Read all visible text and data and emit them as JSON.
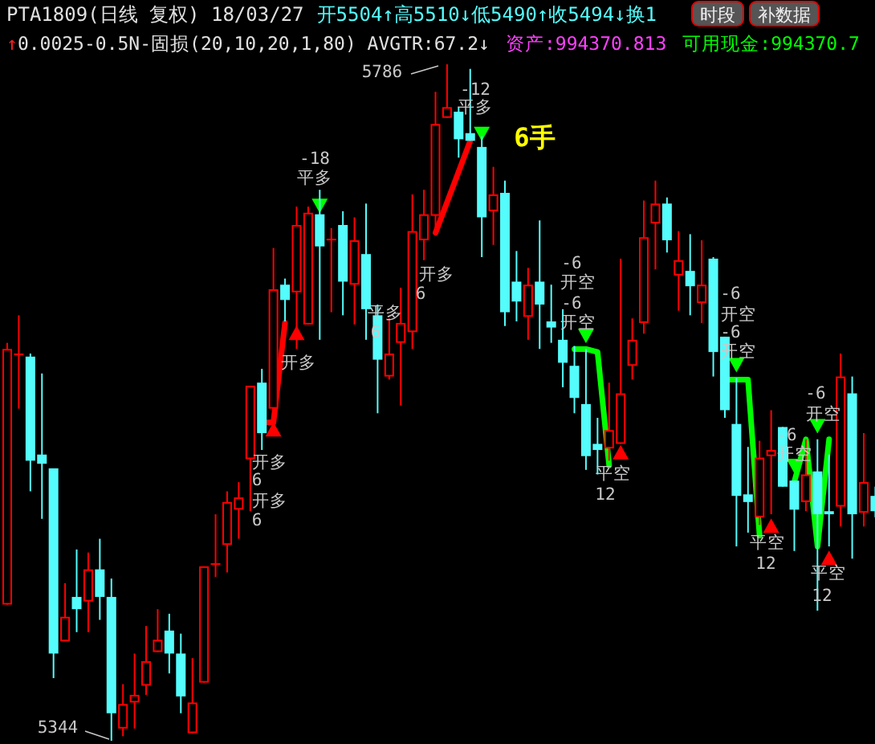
{
  "chart_data": {
    "type": "candlestick",
    "title": "PTA1809(日线 复权) 18/03/27",
    "subtitle": "开5504↑高5510↓低5490↑收5494↓换1",
    "categories": [
      null,
      null,
      null,
      null,
      null,
      null,
      null,
      null,
      null,
      null,
      null,
      null,
      null,
      null,
      null,
      null,
      null,
      null,
      null,
      null,
      null,
      null,
      null,
      null,
      null,
      null,
      null,
      null,
      null,
      null,
      null,
      null,
      null,
      null,
      null,
      null,
      null,
      null,
      null,
      null,
      null,
      null,
      null,
      null,
      null,
      null,
      null,
      null,
      null,
      null,
      null,
      null,
      null,
      null,
      null,
      null,
      null,
      null,
      null,
      null,
      null,
      null,
      null,
      null,
      null,
      null,
      null,
      null,
      null,
      null,
      null,
      null,
      null,
      null,
      null,
      null
    ],
    "ohlc": [
      [
        5433,
        5604,
        5433,
        5600
      ],
      [
        5596,
        5622,
        5561,
        5597
      ],
      [
        5595,
        5597,
        5507,
        5527
      ],
      [
        5531,
        5584,
        5489,
        5525
      ],
      [
        5522,
        5522,
        5385,
        5401
      ],
      [
        5409,
        5447,
        5409,
        5425
      ],
      [
        5438,
        5469,
        5415,
        5430
      ],
      [
        5435,
        5467,
        5415,
        5456
      ],
      [
        5456,
        5476,
        5423,
        5438
      ],
      [
        5438,
        5450,
        5344,
        5362
      ],
      [
        5352,
        5381,
        5347,
        5368
      ],
      [
        5369,
        5401,
        5352,
        5374
      ],
      [
        5380,
        5419,
        5374,
        5396
      ],
      [
        5402,
        5430,
        5402,
        5410
      ],
      [
        5416,
        5427,
        5388,
        5401
      ],
      [
        5401,
        5414,
        5362,
        5373
      ],
      [
        5349,
        5398,
        5349,
        5369
      ],
      [
        5382,
        5458,
        5382,
        5458
      ],
      [
        5459,
        5492,
        5451,
        5460
      ],
      [
        5472,
        5507,
        5454,
        5500
      ],
      [
        5495,
        5513,
        5476,
        5503
      ],
      [
        5528,
        5576,
        5494,
        5576
      ],
      [
        5578,
        5587,
        5534,
        5545
      ],
      [
        5561,
        5666,
        5561,
        5639
      ],
      [
        5642,
        5646,
        5618,
        5632
      ],
      [
        5637,
        5693,
        5600,
        5681
      ],
      [
        5616,
        5693,
        5616,
        5689
      ],
      [
        5688,
        5704,
        5606,
        5667
      ],
      [
        5671,
        5679,
        5624,
        5672
      ],
      [
        5681,
        5690,
        5622,
        5644
      ],
      [
        5642,
        5686,
        5616,
        5671
      ],
      [
        5662,
        5695,
        5606,
        5626
      ],
      [
        5622,
        5629,
        5558,
        5593
      ],
      [
        5582,
        5620,
        5580,
        5597
      ],
      [
        5604,
        5640,
        5563,
        5617
      ],
      [
        5611,
        5701,
        5600,
        5677
      ],
      [
        5671,
        5704,
        5658,
        5688
      ],
      [
        5687,
        5768,
        5676,
        5747
      ],
      [
        5751,
        5786,
        5751,
        5758
      ],
      [
        5755,
        5758,
        5725,
        5737
      ],
      [
        5741,
        5783,
        5736,
        5736
      ],
      [
        5732,
        5739,
        5660,
        5686
      ],
      [
        5690,
        5719,
        5668,
        5701
      ],
      [
        5702,
        5710,
        5615,
        5624
      ],
      [
        5644,
        5664,
        5618,
        5631
      ],
      [
        5621,
        5653,
        5606,
        5642
      ],
      [
        5644,
        5684,
        5600,
        5629
      ],
      [
        5618,
        5642,
        5604,
        5614
      ],
      [
        5606,
        5626,
        5575,
        5591
      ],
      [
        5589,
        5602,
        5558,
        5568
      ],
      [
        5564,
        5600,
        5521,
        5530
      ],
      [
        5538,
        5555,
        5518,
        5534
      ],
      [
        5535,
        5578,
        5527,
        5547
      ],
      [
        5538,
        5659,
        5538,
        5571
      ],
      [
        5589,
        5620,
        5580,
        5606
      ],
      [
        5617,
        5697,
        5610,
        5673
      ],
      [
        5682,
        5710,
        5652,
        5695
      ],
      [
        5695,
        5699,
        5663,
        5671
      ],
      [
        5648,
        5677,
        5625,
        5658
      ],
      [
        5651,
        5675,
        5622,
        5641
      ],
      [
        5630,
        5671,
        5617,
        5642
      ],
      [
        5659,
        5660,
        5582,
        5598
      ],
      [
        5608,
        5608,
        5555,
        5560
      ],
      [
        5551,
        5581,
        5471,
        5504
      ],
      [
        5505,
        5536,
        5480,
        5500
      ],
      [
        5490,
        5540,
        5485,
        5529
      ],
      [
        5530,
        5560,
        5492,
        5534
      ],
      [
        5549,
        5549,
        5510,
        5510
      ],
      [
        5514,
        5514,
        5468,
        5495
      ],
      [
        5500,
        5541,
        5494,
        5518
      ],
      [
        5520,
        5541,
        5429,
        5492
      ],
      [
        5494,
        5531,
        5471,
        5492
      ],
      [
        5497,
        5597,
        5484,
        5582
      ],
      [
        5571,
        5582,
        5463,
        5492
      ],
      [
        5493,
        5545,
        5484,
        5513
      ],
      [
        5504,
        5510,
        5490,
        5494
      ]
    ],
    "colors": [
      "#ff0000",
      "#ff0000",
      "#54fcfc",
      "#54fcfc",
      "#54fcfc",
      "#ff0000",
      "#54fcfc",
      "#ff0000",
      "#54fcfc",
      "#54fcfc",
      "#ff0000",
      "#ff0000",
      "#ff0000",
      "#ff0000",
      "#54fcfc",
      "#54fcfc",
      "#ff0000",
      "#ff0000",
      "#ff0000",
      "#ff0000",
      "#ff0000",
      "#ff0000",
      "#54fcfc",
      "#ff0000",
      "#54fcfc",
      "#ff0000",
      "#ff0000",
      "#54fcfc",
      "#ff0000",
      "#54fcfc",
      "#ff0000",
      "#54fcfc",
      "#54fcfc",
      "#ff0000",
      "#ff0000",
      "#ff0000",
      "#ff0000",
      "#ff0000",
      "#ff0000",
      "#54fcfc",
      "#54fcfc",
      "#54fcfc",
      "#ff0000",
      "#54fcfc",
      "#54fcfc",
      "#ff0000",
      "#54fcfc",
      "#54fcfc",
      "#54fcfc",
      "#54fcfc",
      "#54fcfc",
      "#54fcfc",
      "#ff0000",
      "#ff0000",
      "#ff0000",
      "#ff0000",
      "#ff0000",
      "#54fcfc",
      "#ff0000",
      "#54fcfc",
      "#ff0000",
      "#54fcfc",
      "#54fcfc",
      "#54fcfc",
      "#54fcfc",
      "#ff0000",
      "#ff0000",
      "#54fcfc",
      "#54fcfc",
      "#ff0000",
      "#54fcfc",
      "#54fcfc",
      "#ff0000",
      "#54fcfc",
      "#ff0000",
      "#54fcfc"
    ],
    "series": [
      {
        "type": "line",
        "color": "#ff0000",
        "values": [
          null,
          null,
          null,
          null,
          null,
          null,
          null,
          null,
          null,
          null,
          null,
          null,
          null,
          null,
          null,
          null,
          null,
          null,
          null,
          null,
          null,
          null,
          5552,
          5552,
          5617,
          null,
          null,
          null,
          null,
          null,
          null,
          null,
          null,
          null,
          null,
          null,
          null,
          5676,
          5696,
          5716,
          5736,
          null,
          null,
          null,
          null,
          null,
          null,
          null,
          null,
          null,
          null,
          null,
          null,
          null,
          null,
          null,
          null,
          null,
          null,
          null,
          null,
          null,
          null,
          null,
          null,
          null,
          null,
          null,
          null,
          null,
          null,
          null,
          null,
          null,
          null,
          null
        ]
      },
      {
        "type": "line",
        "color": "#00ff00",
        "values": [
          null,
          null,
          null,
          null,
          null,
          null,
          null,
          null,
          null,
          null,
          null,
          null,
          null,
          null,
          null,
          null,
          null,
          null,
          null,
          null,
          null,
          null,
          null,
          null,
          null,
          null,
          null,
          null,
          null,
          null,
          null,
          null,
          null,
          null,
          null,
          null,
          null,
          null,
          null,
          null,
          null,
          null,
          null,
          null,
          null,
          null,
          null,
          null,
          null,
          5600,
          5600,
          5598,
          5524,
          null,
          null,
          null,
          null,
          null,
          null,
          null,
          null,
          null,
          5580,
          5580,
          5580,
          5478,
          null,
          null,
          5513,
          5541,
          5471,
          5541,
          null,
          null,
          null,
          null
        ]
      },
      {
        "type": "scatter",
        "marker": "triangle",
        "color": "#ff0000",
        "values": [
          null,
          null,
          null,
          null,
          null,
          null,
          null,
          null,
          null,
          null,
          null,
          null,
          null,
          null,
          null,
          null,
          null,
          null,
          null,
          null,
          null,
          null,
          null,
          5547,
          null,
          5610,
          null,
          null,
          null,
          null,
          null,
          null,
          null,
          null,
          null,
          null,
          null,
          null,
          null,
          null,
          null,
          null,
          null,
          null,
          null,
          null,
          null,
          null,
          null,
          null,
          null,
          null,
          null,
          5532,
          null,
          null,
          null,
          null,
          null,
          null,
          null,
          null,
          null,
          null,
          null,
          null,
          5484,
          null,
          null,
          null,
          null,
          5463,
          null,
          null,
          null,
          null
        ]
      },
      {
        "type": "scatter",
        "marker": "triangle",
        "color": "#00ff00",
        "values": [
          null,
          null,
          null,
          null,
          null,
          null,
          null,
          null,
          null,
          null,
          null,
          null,
          null,
          null,
          null,
          null,
          null,
          null,
          null,
          null,
          null,
          null,
          null,
          null,
          null,
          null,
          null,
          5694,
          null,
          null,
          null,
          null,
          null,
          null,
          null,
          null,
          null,
          null,
          null,
          null,
          null,
          5741,
          null,
          null,
          null,
          null,
          null,
          null,
          null,
          null,
          5609,
          null,
          null,
          null,
          null,
          null,
          null,
          null,
          null,
          null,
          null,
          null,
          null,
          5590,
          null,
          null,
          null,
          null,
          5524,
          null,
          5550,
          null,
          null,
          null,
          null,
          null
        ]
      }
    ],
    "annotations": [
      "↑0.0025-0.5N-固损(20,10,20,1,80) AVGTR:67.2↓",
      "资产:994370.813",
      "可用现金:994370.7",
      "时段",
      "补数据",
      "开多",
      "6",
      "开多",
      "6",
      "开多",
      "-18",
      "平多",
      "开多",
      "6",
      "平多",
      "6",
      "-12",
      "平多",
      "6手",
      "-6",
      "开空",
      "-6",
      "开空",
      "平空",
      "12",
      "-6",
      "开空",
      "-6",
      "开空",
      "-6",
      "开空",
      "-6",
      "开空",
      "平空",
      "12",
      "平空",
      "12",
      "5786",
      "5344"
    ]
  }
}
